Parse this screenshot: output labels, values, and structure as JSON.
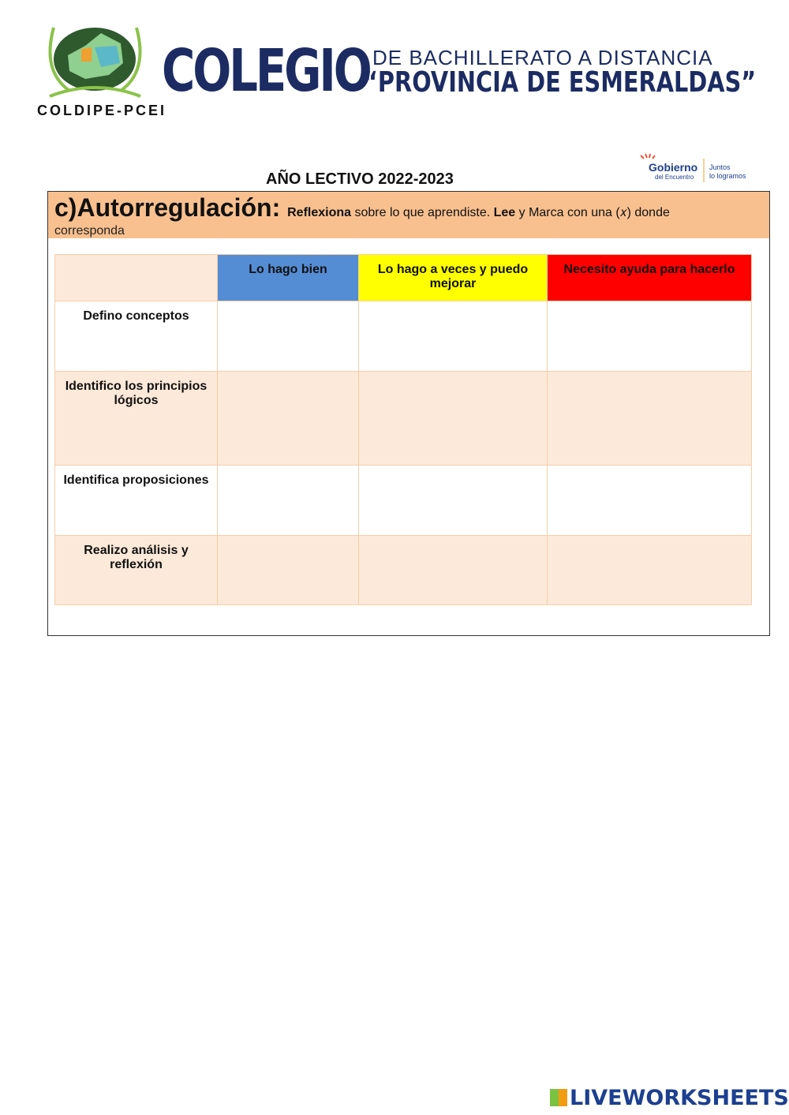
{
  "header": {
    "title_main": "COLEGIO",
    "subtitle_1": "DE BACHILLERATO A DISTANCIA",
    "subtitle_2": "“PROVINCIA DE ESMERALDAS”",
    "logo_caption": "COLDIPE-PCEI",
    "gov_logo_text": "Gobierno del Encuentro | Juntos lo logramos"
  },
  "year": "AÑO LECTIVO 2022-2023",
  "section": {
    "heading": "c)Autorregulación:",
    "bold1": "Reflexiona",
    "text1": " sobre lo que aprendiste. ",
    "bold2": "Lee",
    "text2": " y Marca con una (𝑥) donde",
    "text3": "corresponda"
  },
  "table": {
    "columns": [
      {
        "label": "Lo hago bien",
        "color": "#548dd4"
      },
      {
        "label": "Lo hago a veces y puedo mejorar",
        "color": "#ffff00"
      },
      {
        "label": "Necesito ayuda para hacerlo",
        "color": "#ff0000"
      }
    ],
    "rows": [
      {
        "label": "Defino conceptos"
      },
      {
        "label": "Identifico los principios lógicos"
      },
      {
        "label": "Identifica proposiciones"
      },
      {
        "label": "Realizo análisis y reflexión"
      }
    ]
  },
  "footer": {
    "brand": "LIVEWORKSHEETS"
  }
}
